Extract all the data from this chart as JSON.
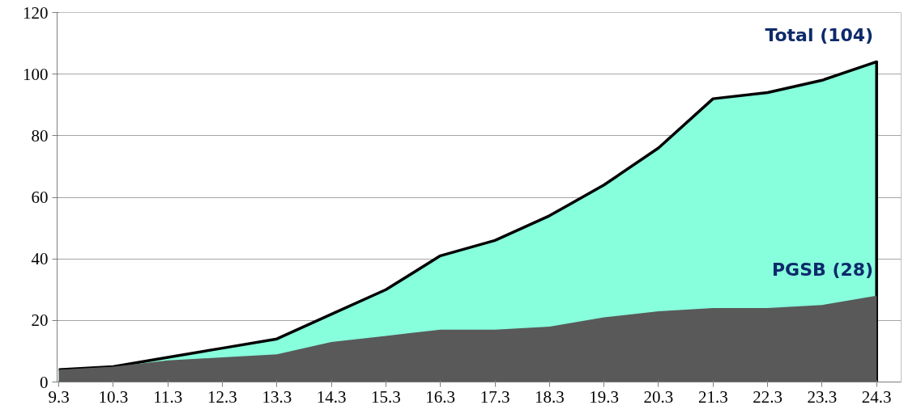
{
  "chart_data": {
    "type": "area",
    "categories": [
      "9.3",
      "10.3",
      "11.3",
      "12.3",
      "13.3",
      "14.3",
      "15.3",
      "16.3",
      "17.3",
      "18.3",
      "19.3",
      "20.3",
      "21.3",
      "22.3",
      "23.3",
      "24.3"
    ],
    "series": [
      {
        "color": "#87fedc",
        "values": [
          4,
          5,
          8,
          11,
          14,
          22,
          30,
          41,
          46,
          54,
          64,
          76,
          92,
          94,
          98,
          104
        ]
      },
      {
        "color": "#595959",
        "values": [
          4,
          5,
          7,
          8,
          9,
          13,
          15,
          17,
          17,
          18,
          21,
          23,
          24,
          24,
          25,
          28
        ]
      }
    ],
    "ylim": [
      0,
      120
    ],
    "yticks": [
      0,
      20,
      40,
      60,
      80,
      100,
      120
    ],
    "grid": "y",
    "annotations": [
      {
        "text": "Total (104)",
        "x": "24.3",
        "y": 104
      },
      {
        "text": "PGSB (28)",
        "x": "24.3",
        "y": 28
      }
    ]
  }
}
